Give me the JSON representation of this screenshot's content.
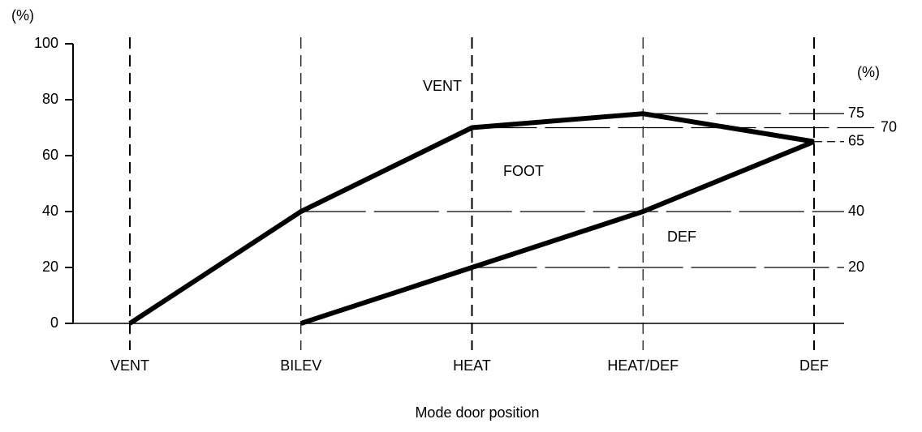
{
  "chart_data": {
    "type": "line",
    "y_unit": "(%)",
    "x_title": "Mode door position",
    "categories": [
      "VENT",
      "BILEV",
      "HEAT",
      "HEAT/DEF",
      "DEF"
    ],
    "series": [
      {
        "name": "VENT",
        "color": "#000000",
        "values": [
          0,
          40,
          70,
          75,
          65
        ]
      },
      {
        "name": "FOOT",
        "color": "#000000",
        "values": [
          null,
          0,
          20,
          40,
          65
        ]
      }
    ],
    "region_labels": [
      "VENT",
      "FOOT",
      "DEF"
    ],
    "ylim": [
      0,
      100
    ],
    "yticks": [
      0,
      20,
      40,
      60,
      80,
      100
    ],
    "right_unit": "(%)",
    "right_ticks": [
      75,
      70,
      65,
      40,
      20
    ]
  }
}
